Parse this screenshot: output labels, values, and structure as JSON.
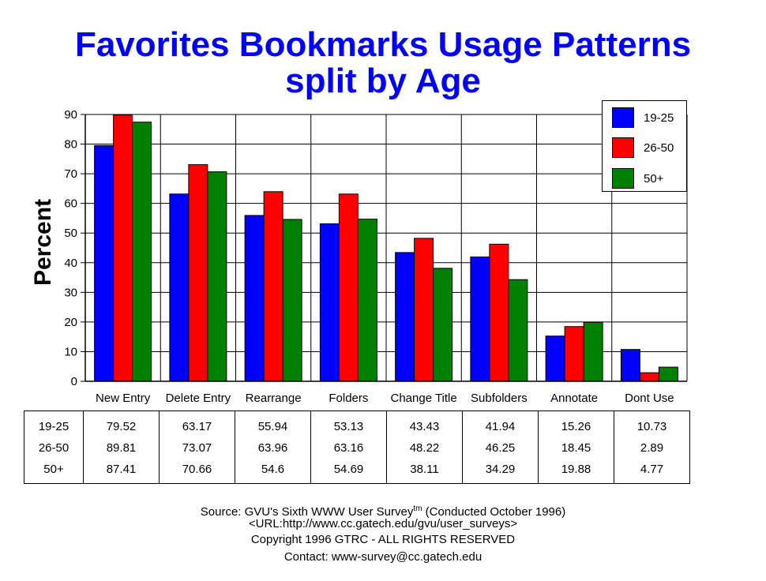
{
  "chart_data": {
    "type": "bar",
    "title": "Favorites Bookmarks Usage Patterns",
    "subtitle": "split by Age",
    "ylabel": "Percent",
    "xlabel": "",
    "ylim": [
      0,
      90
    ],
    "yticks": [
      0,
      10,
      20,
      30,
      40,
      50,
      60,
      70,
      80,
      90
    ],
    "grid": true,
    "legend_position": "top-right",
    "categories": [
      "New Entry",
      "Delete Entry",
      "Rearrange",
      "Folders",
      "Change Title",
      "Subfolders",
      "Annotate",
      "Dont Use"
    ],
    "series": [
      {
        "name": "19-25",
        "color": "#0000ff",
        "values": [
          79.52,
          63.17,
          55.94,
          53.13,
          43.43,
          41.94,
          15.26,
          10.73
        ]
      },
      {
        "name": "26-50",
        "color": "#ff0000",
        "values": [
          89.81,
          73.07,
          63.96,
          63.16,
          48.22,
          46.25,
          18.45,
          2.89
        ]
      },
      {
        "name": "50+",
        "color": "#008000",
        "values": [
          87.41,
          70.66,
          54.6,
          54.69,
          38.11,
          34.29,
          19.88,
          4.77
        ]
      }
    ]
  },
  "table": {
    "rows": [
      {
        "label": "19-25",
        "values": [
          "79.52",
          "63.17",
          "55.94",
          "53.13",
          "43.43",
          "41.94",
          "15.26",
          "10.73"
        ]
      },
      {
        "label": "26-50",
        "values": [
          "89.81",
          "73.07",
          "63.96",
          "63.16",
          "48.22",
          "46.25",
          "18.45",
          "2.89"
        ]
      },
      {
        "label": "50+",
        "values": [
          "87.41",
          "70.66",
          "54.6",
          "54.69",
          "38.11",
          "34.29",
          "19.88",
          "4.77"
        ]
      }
    ]
  },
  "footer": {
    "source_prefix": "Source: GVU's Sixth WWW User Survey",
    "source_sup": "tm",
    "source_suffix": "  (Conducted October 1996)",
    "url": "<URL:http://www.cc.gatech.edu/gvu/user_surveys>",
    "copyright": "Copyright 1996 GTRC -  ALL RIGHTS RESERVED",
    "contact": "Contact: www-survey@cc.gatech.edu"
  }
}
